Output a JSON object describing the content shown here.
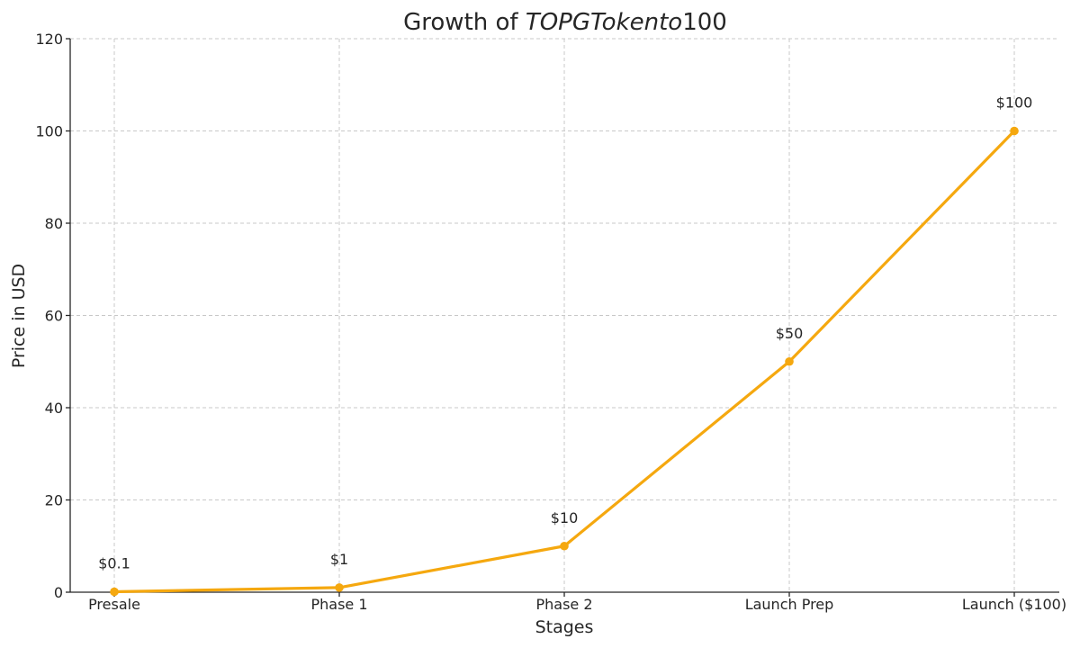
{
  "chart_data": {
    "type": "line",
    "title_prefix": "Growth of ",
    "title_italic": "TOPGTokento",
    "title_suffix": "100",
    "xlabel": "Stages",
    "ylabel": "Price in USD",
    "categories": [
      "Presale",
      "Phase 1",
      "Phase 2",
      "Launch Prep",
      "Launch ($100)"
    ],
    "values": [
      0.1,
      1,
      10,
      50,
      100
    ],
    "data_labels": [
      "$0.1",
      "$1",
      "$10",
      "$50",
      "$100"
    ],
    "ylim": [
      0,
      120
    ],
    "yticks": [
      0,
      20,
      40,
      60,
      80,
      100,
      120
    ],
    "ytick_labels": [
      "0",
      "20",
      "40",
      "60",
      "80",
      "100",
      "120"
    ],
    "grid": true,
    "line_color": "#f5a80f"
  }
}
